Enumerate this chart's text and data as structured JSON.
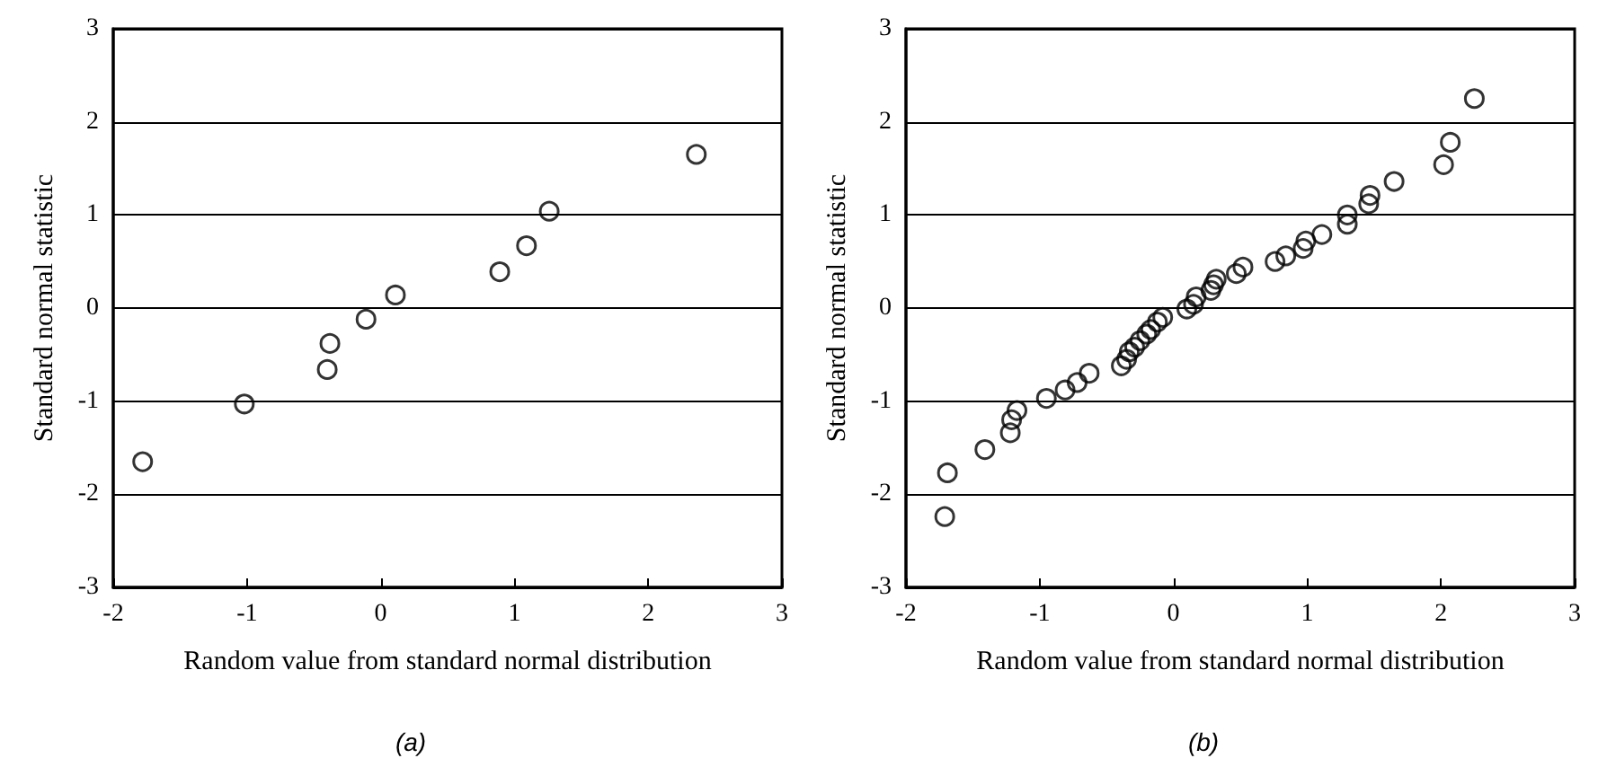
{
  "chart_data": [
    {
      "type": "scatter",
      "title": "(a)",
      "xlabel": "Random value from standard normal distribution",
      "ylabel": "Standard normal statistic",
      "xlim": [
        -2,
        3
      ],
      "xticks": [
        -2,
        -1,
        0,
        1,
        2,
        3
      ],
      "ylim": [
        -3,
        3
      ],
      "yticks": [
        -3,
        -2,
        -1,
        0,
        1,
        2,
        3
      ],
      "grid": "y",
      "marker": "circle",
      "series": [
        {
          "color": "#000000",
          "x": [
            -1.78,
            -1.02,
            -0.38,
            -0.4,
            -0.11,
            0.11,
            0.89,
            1.09,
            1.26,
            2.36
          ],
          "values": [
            -1.65,
            -1.03,
            -0.38,
            -0.66,
            -0.12,
            0.14,
            0.39,
            0.67,
            1.04,
            1.65
          ]
        }
      ]
    },
    {
      "type": "scatter",
      "title": "(b)",
      "xlabel": "Random value from standard normal distribution",
      "ylabel": "Standard normal statistic",
      "xlim": [
        -2,
        3
      ],
      "xticks": [
        -2,
        -1,
        0,
        1,
        2,
        3
      ],
      "ylim": [
        -3,
        3
      ],
      "yticks": [
        -3,
        -2,
        -1,
        0,
        1,
        2,
        3
      ],
      "grid": "y",
      "marker": "circle",
      "series": [
        {
          "color": "#000000",
          "x": [
            -1.71,
            -1.69,
            -1.41,
            -1.22,
            -1.21,
            -1.17,
            -0.95,
            -0.81,
            -0.72,
            -0.63,
            -0.39,
            -0.35,
            -0.33,
            -0.29,
            -0.25,
            -0.2,
            -0.17,
            -0.12,
            -0.08,
            0.1,
            0.15,
            0.17,
            0.28,
            0.3,
            0.32,
            0.47,
            0.52,
            0.76,
            0.84,
            0.97,
            0.99,
            1.11,
            1.3,
            1.3,
            1.46,
            1.47,
            1.65,
            2.02,
            2.07,
            2.25
          ],
          "values": [
            -2.24,
            -1.77,
            -1.52,
            -1.34,
            -1.2,
            -1.1,
            -0.97,
            -0.88,
            -0.8,
            -0.7,
            -0.62,
            -0.55,
            -0.47,
            -0.42,
            -0.35,
            -0.28,
            -0.23,
            -0.15,
            -0.1,
            -0.01,
            0.04,
            0.12,
            0.19,
            0.25,
            0.31,
            0.37,
            0.44,
            0.5,
            0.56,
            0.64,
            0.72,
            0.79,
            0.9,
            1.0,
            1.12,
            1.21,
            1.36,
            1.54,
            1.78,
            2.25
          ]
        }
      ]
    }
  ]
}
